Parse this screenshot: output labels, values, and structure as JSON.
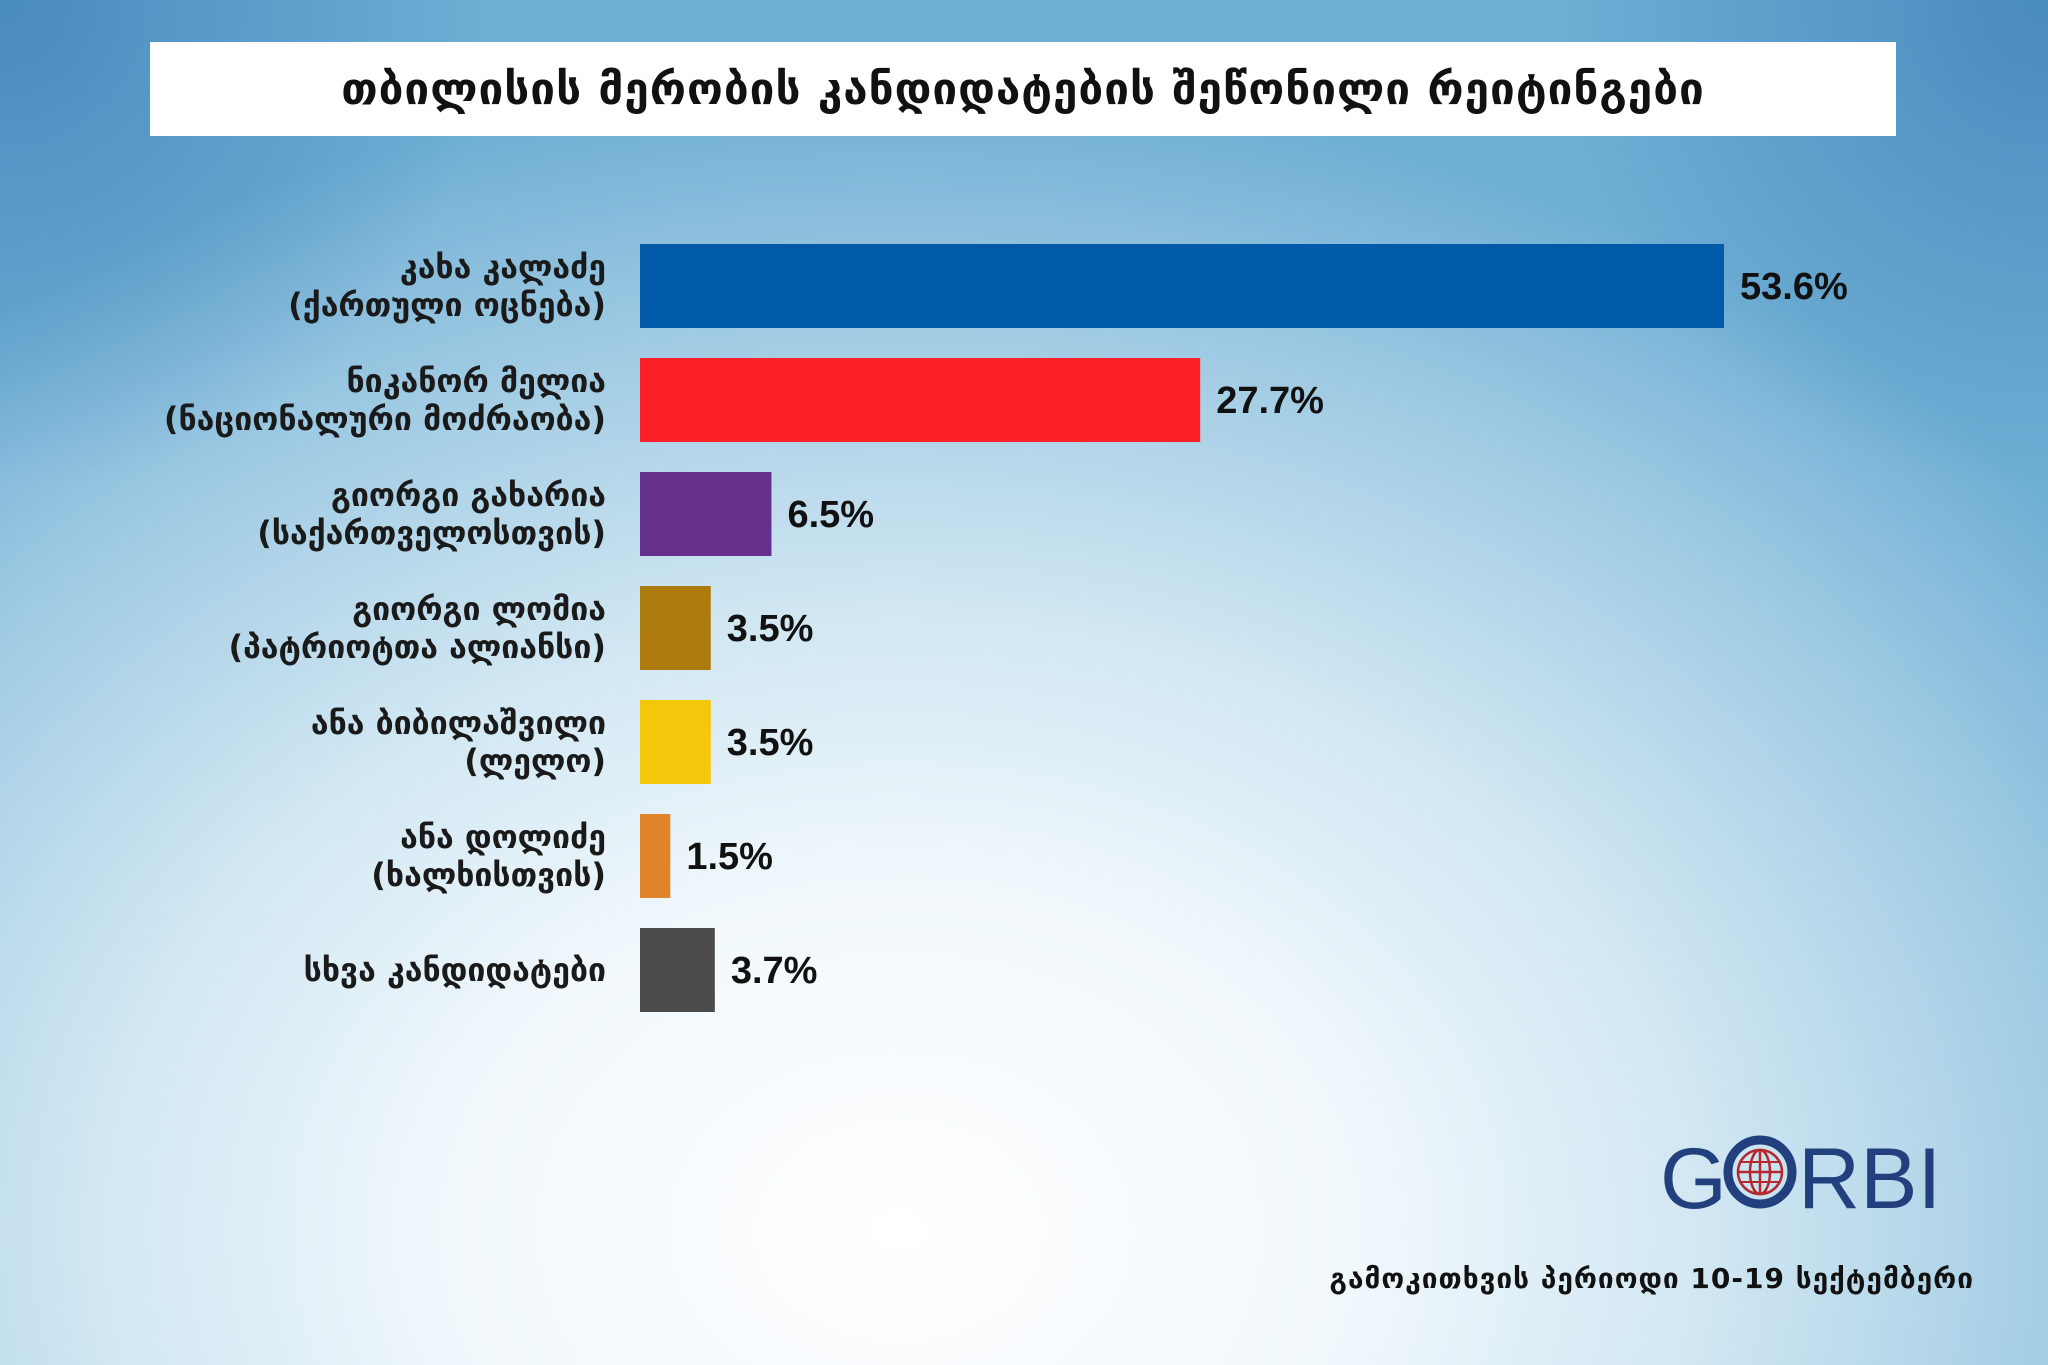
{
  "chart_data": {
    "type": "bar",
    "orientation": "horizontal",
    "title": "თბილისის მერობის კანდიდატების შეწონილი რეიტინგები",
    "categories": [
      [
        "კახა კალაძე",
        "(ქართული ოცნება)"
      ],
      [
        "ნიკანორ მელია",
        "(ნაციონალური მოძრაობა)"
      ],
      [
        "გიორგი გახარია",
        "(საქართველოსთვის)"
      ],
      [
        "გიორგი ლომია",
        "(პატრიოტთა ალიანსი)"
      ],
      [
        "ანა ბიბილაშვილი",
        "(ლელო)"
      ],
      [
        "ანა დოლიძე",
        "(ხალხისთვის)"
      ],
      [
        "სხვა კანდიდატები"
      ]
    ],
    "values": [
      53.6,
      27.7,
      6.5,
      3.5,
      3.5,
      1.5,
      3.7
    ],
    "value_labels": [
      "53.6%",
      "27.7%",
      "6.5%",
      "3.5%",
      "3.5%",
      "1.5%",
      "3.7%"
    ],
    "colors": [
      "#005aa8",
      "#fc2029",
      "#67308c",
      "#ad7b0d",
      "#f4c70b",
      "#e0852a",
      "#4b4b4b"
    ],
    "xlim": [
      0,
      60
    ],
    "grid": false,
    "legend": "none"
  },
  "logo": {
    "text": "GORBI",
    "color": "#223f7e",
    "icon": "globe-icon",
    "icon_color": "#b5282e"
  },
  "footer": {
    "text": "გამოკითხვის პერიოდი 10-19 სექტემბერი"
  }
}
